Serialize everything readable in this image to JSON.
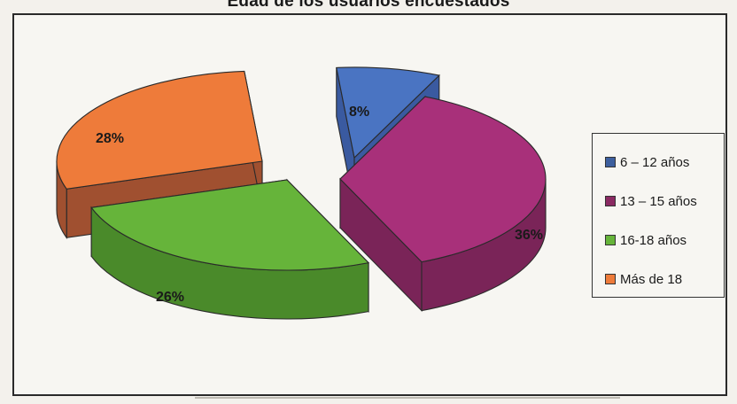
{
  "chart_data": {
    "type": "pie",
    "title": "Edad de los usuarios encuestados",
    "legend_position": "right",
    "three_d": true,
    "categories": [
      "6 – 12 años",
      "13 – 15 años",
      "16-18 años",
      "Más de 18"
    ],
    "values": [
      8,
      36,
      26,
      28
    ],
    "labels": [
      "8%",
      "36%",
      "26%",
      "28%"
    ],
    "colors": [
      "#4a74c2",
      "#a8307a",
      "#66b43a",
      "#ee7b3a"
    ],
    "side_colors": [
      "#3a5aa0",
      "#7a2458",
      "#4a8a2a",
      "#a05030"
    ]
  }
}
